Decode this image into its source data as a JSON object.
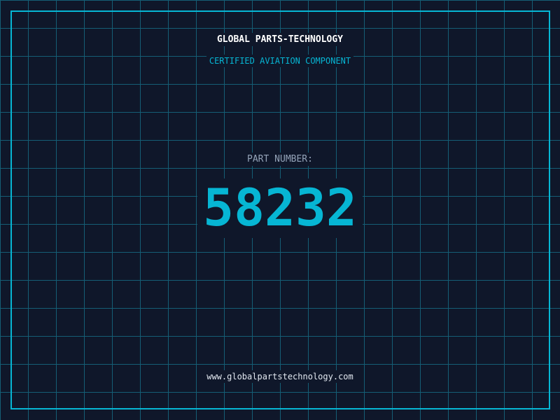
{
  "brand": "GLOBAL PARTS-TECHNOLOGY",
  "subtitle": "CERTIFIED AVIATION COMPONENT",
  "part_label": "PART NUMBER:",
  "part_number": "58232",
  "website": "www.globalpartstechnology.com",
  "colors": {
    "background": "#0f172a",
    "accent": "#06b6d4",
    "grid": "#155e75"
  }
}
